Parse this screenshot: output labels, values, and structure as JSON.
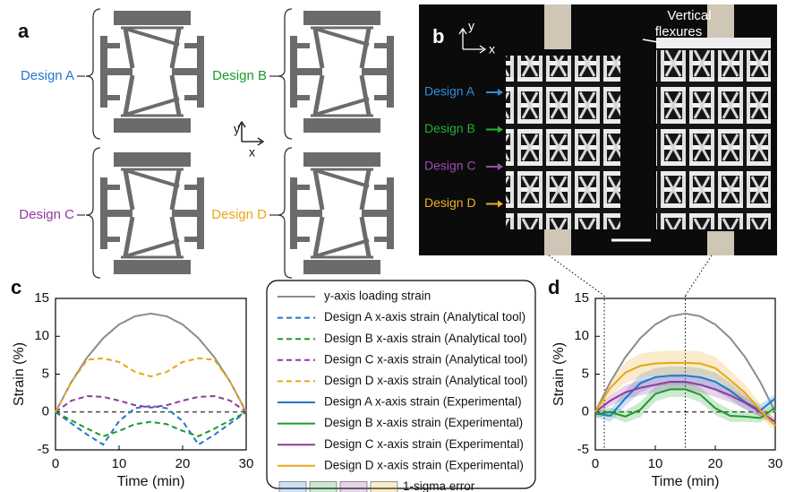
{
  "panels": {
    "a": {
      "label": "a",
      "designs": [
        "Design A",
        "Design B",
        "Design C",
        "Design D"
      ],
      "design_colors": [
        "#1f78c8",
        "#1a9a2a",
        "#8e3a9e",
        "#e8a618"
      ],
      "axis_y": "y",
      "axis_x": "x"
    },
    "b": {
      "label": "b",
      "designs": [
        "Design A",
        "Design B",
        "Design C",
        "Design D"
      ],
      "design_colors": [
        "#2f8ee0",
        "#22b030",
        "#a04ab0",
        "#f0b020"
      ],
      "annotation": [
        "Vertical",
        "flexures"
      ],
      "axis_y": "y",
      "axis_x": "x"
    }
  },
  "chart_data": [
    {
      "type": "line",
      "panel_label": "c",
      "xlabel": "Time (min)",
      "ylabel": "Strain (%)",
      "x": [
        0,
        2.5,
        5,
        7.5,
        10,
        12.5,
        15,
        17.5,
        20,
        22.5,
        25,
        27.5,
        30
      ],
      "xlim": [
        0,
        30
      ],
      "ylim": [
        -5,
        15
      ],
      "xticks": [
        0,
        10,
        20,
        30
      ],
      "yticks": [
        -5,
        0,
        5,
        10,
        15
      ],
      "zero_line": true,
      "series": [
        {
          "name": "y-axis loading strain",
          "color": "#8c8c8c",
          "dashed": false,
          "values": [
            0,
            3.97,
            7.22,
            9.75,
            11.56,
            12.64,
            13,
            12.64,
            11.56,
            9.75,
            7.22,
            3.97,
            0
          ]
        },
        {
          "name": "Design A x-axis strain (Analytical tool)",
          "color": "#1f78c8",
          "dashed": true,
          "values": [
            0,
            -1.5,
            -3,
            -4.3,
            -1.2,
            0.5,
            0.8,
            0.5,
            -1.2,
            -4.3,
            -3,
            -1.5,
            0
          ]
        },
        {
          "name": "Design B x-axis strain (Analytical tool)",
          "color": "#1a9a2a",
          "dashed": true,
          "values": [
            0,
            -1.1,
            -2.2,
            -3.2,
            -2.5,
            -1.6,
            -1.3,
            -1.6,
            -2.5,
            -3.2,
            -2.2,
            -1.1,
            0
          ]
        },
        {
          "name": "Design C x-axis strain (Analytical tool)",
          "color": "#8e3a9e",
          "dashed": true,
          "values": [
            0,
            1.5,
            2.1,
            2,
            1.5,
            0.9,
            0.6,
            0.9,
            1.5,
            2,
            2.1,
            1.5,
            0
          ]
        },
        {
          "name": "Design D x-axis strain (Analytical tool)",
          "color": "#e8a618",
          "dashed": true,
          "values": [
            0,
            3.97,
            6.9,
            7.1,
            6.6,
            5.3,
            4.7,
            5.3,
            6.6,
            7.1,
            6.9,
            3.97,
            0
          ]
        }
      ]
    },
    {
      "type": "line",
      "panel_label": "d",
      "xlabel": "Time (min)",
      "ylabel": "Strain (%)",
      "x": [
        0,
        2.5,
        5,
        7.5,
        10,
        12.5,
        15,
        17.5,
        20,
        22.5,
        25,
        27.5,
        30
      ],
      "xlim": [
        0,
        30
      ],
      "ylim": [
        -5,
        15
      ],
      "xticks": [
        0,
        10,
        20,
        30
      ],
      "yticks": [
        -5,
        0,
        5,
        10,
        15
      ],
      "zero_line": true,
      "vlines": [
        1.5,
        15
      ],
      "band_label": "1-sigma error",
      "series": [
        {
          "color": "#8c8c8c",
          "dashed": false,
          "values": [
            0,
            3.97,
            7.22,
            9.75,
            11.56,
            12.64,
            13,
            12.64,
            11.56,
            9.75,
            7.22,
            3.97,
            0
          ]
        },
        {
          "name": "Design A x-axis strain (Experimental)",
          "color": "#1f78c8",
          "dashed": false,
          "values": [
            -0.2,
            -0.5,
            1.8,
            3.8,
            4.6,
            4.8,
            4.8,
            4.6,
            4,
            2.8,
            1.3,
            0.2,
            1.8
          ],
          "errors": [
            0.5,
            0.8,
            1,
            1.2,
            1.2,
            1.2,
            1.2,
            1.2,
            1.2,
            1.1,
            1,
            0.8,
            0.6
          ]
        },
        {
          "name": "Design B x-axis strain (Experimental)",
          "color": "#1a9a2a",
          "dashed": false,
          "values": [
            -0.3,
            0,
            -0.6,
            0.3,
            2.4,
            3,
            3,
            2.3,
            0.5,
            -0.5,
            -0.6,
            -0.8,
            0.6
          ],
          "errors": [
            0.4,
            0.6,
            0.8,
            1,
            1,
            1,
            1,
            1,
            0.9,
            0.8,
            0.7,
            0.6,
            0.5
          ]
        },
        {
          "name": "Design C x-axis strain (Experimental)",
          "color": "#8e3a9e",
          "dashed": false,
          "values": [
            0,
            1.5,
            2.6,
            3.2,
            3.6,
            4,
            4,
            3.6,
            3,
            2.2,
            1.2,
            0,
            -1.3
          ],
          "errors": [
            0.4,
            0.7,
            0.9,
            1,
            1,
            1,
            1,
            1,
            1,
            0.9,
            0.8,
            0.6,
            0.5
          ]
        },
        {
          "name": "Design D x-axis strain (Experimental)",
          "color": "#e8a618",
          "dashed": false,
          "values": [
            0,
            3.2,
            5.2,
            6.1,
            6.4,
            6.5,
            6.5,
            6.4,
            5.8,
            4.2,
            2.5,
            0.2,
            -1.8
          ],
          "errors": [
            0.5,
            1,
            1.4,
            1.6,
            1.6,
            1.6,
            1.6,
            1.6,
            1.5,
            1.3,
            1.1,
            0.9,
            0.6
          ]
        }
      ]
    }
  ]
}
